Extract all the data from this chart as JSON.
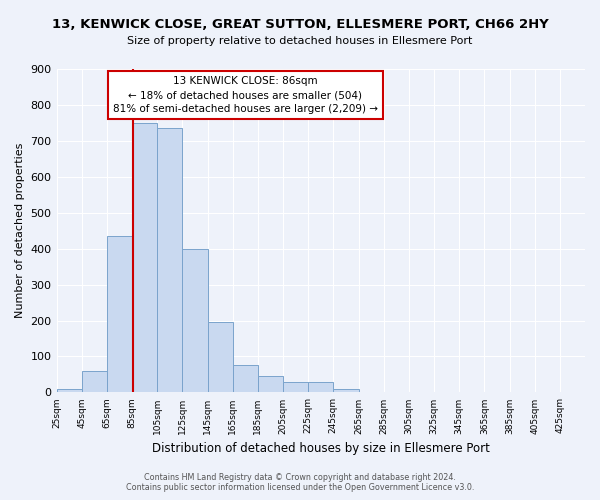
{
  "title": "13, KENWICK CLOSE, GREAT SUTTON, ELLESMERE PORT, CH66 2HY",
  "subtitle": "Size of property relative to detached houses in Ellesmere Port",
  "xlabel": "Distribution of detached houses by size in Ellesmere Port",
  "ylabel": "Number of detached properties",
  "bin_edges": [
    25,
    45,
    65,
    85,
    105,
    125,
    145,
    165,
    185,
    205,
    225,
    245,
    265,
    285,
    305,
    325,
    345,
    365,
    385,
    405,
    425
  ],
  "bar_heights": [
    10,
    60,
    435,
    750,
    735,
    400,
    197,
    75,
    45,
    28,
    28,
    10,
    0,
    0,
    0,
    0,
    0,
    0,
    0,
    0
  ],
  "bar_color": "#c9d9f0",
  "bar_edge_color": "#7aa3cc",
  "vline_x": 86,
  "vline_color": "#cc0000",
  "annotation_title": "13 KENWICK CLOSE: 86sqm",
  "annotation_line1": "← 18% of detached houses are smaller (504)",
  "annotation_line2": "81% of semi-detached houses are larger (2,209) →",
  "annotation_box_color": "#cc0000",
  "ylim": [
    0,
    900
  ],
  "yticks": [
    0,
    100,
    200,
    300,
    400,
    500,
    600,
    700,
    800,
    900
  ],
  "footer_line1": "Contains HM Land Registry data © Crown copyright and database right 2024.",
  "footer_line2": "Contains public sector information licensed under the Open Government Licence v3.0.",
  "bg_color": "#eef2fa",
  "plot_bg_color": "#eef2fa",
  "grid_color": "#ffffff"
}
